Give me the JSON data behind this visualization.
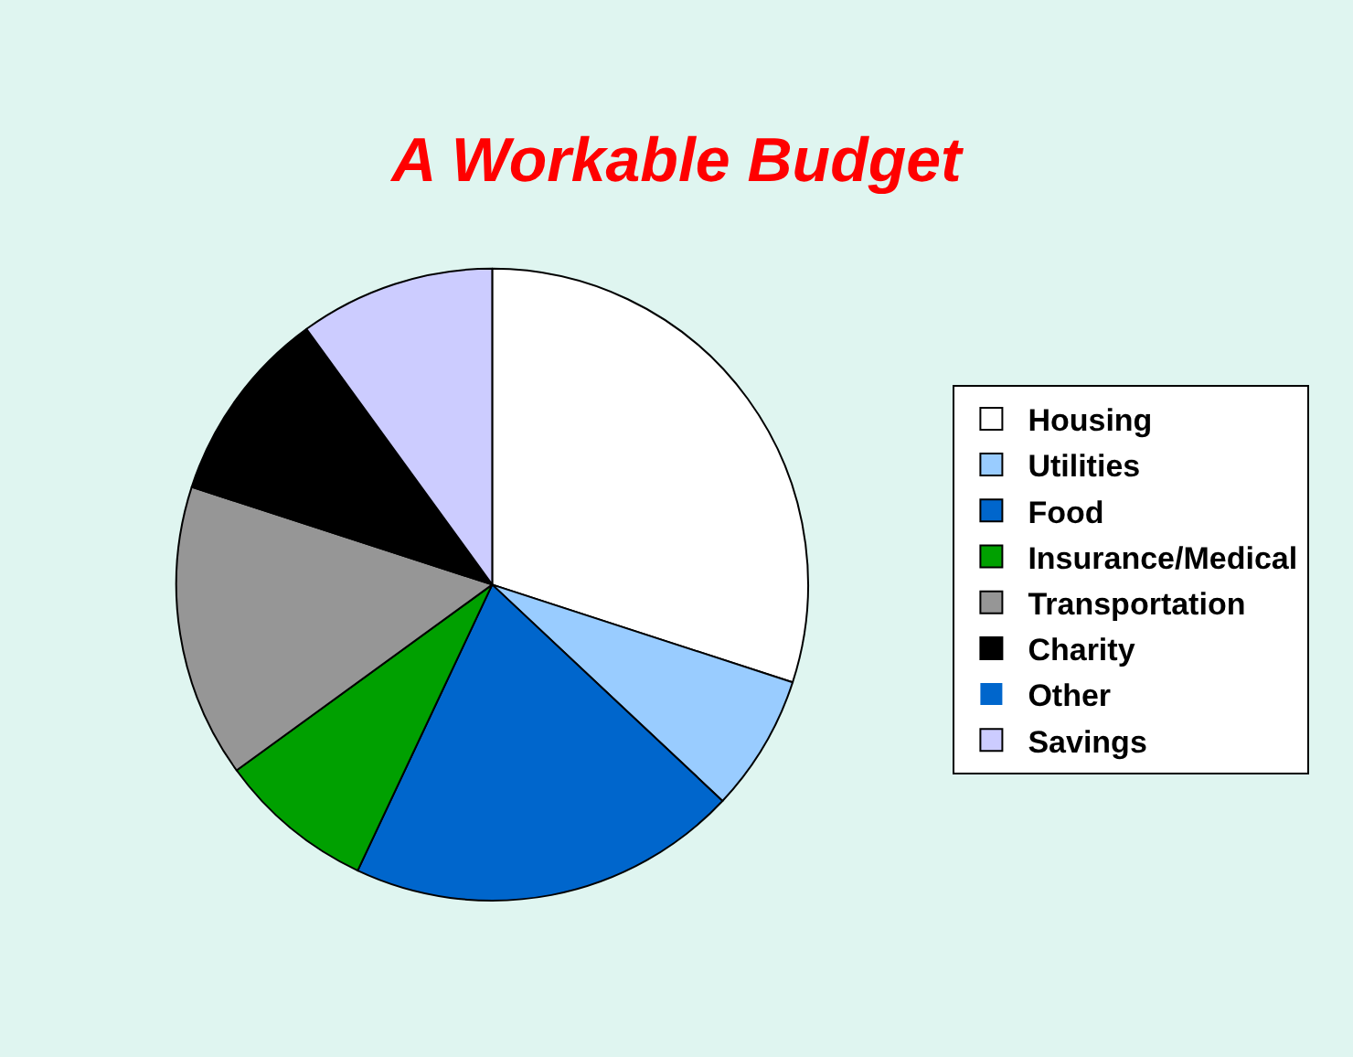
{
  "chart_data": {
    "type": "pie",
    "title": "A Workable Budget",
    "categories": [
      "Housing",
      "Utilities",
      "Food",
      "Insurance/Medical",
      "Transportation",
      "Charity",
      "Other",
      "Savings"
    ],
    "values": [
      30,
      7,
      20,
      8,
      15,
      10,
      0,
      10
    ],
    "colors": [
      "#ffffff",
      "#99ccff",
      "#0066cc",
      "#00a000",
      "#969696",
      "#000000",
      "#0066cc",
      "#ccccff"
    ],
    "legend": "right"
  }
}
